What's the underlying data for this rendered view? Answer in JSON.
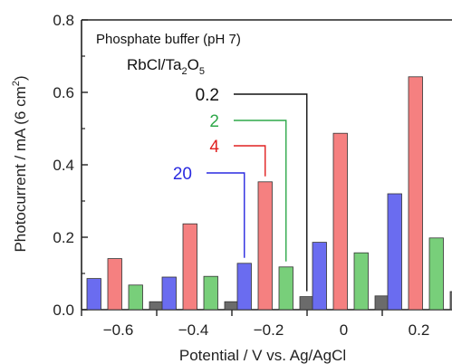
{
  "chart_data": {
    "type": "bar",
    "annotation_line1": "Phosphate buffer (pH 7)",
    "annotation_line2_main": "RbCl/Ta",
    "annotation_line2_sub1": "2",
    "annotation_line2_mid": "O",
    "annotation_line2_sub2": "5",
    "xlabel": "Potential  / V vs. Ag/AgCl",
    "ylabel": "Photocurrent / mA (6 cm²)",
    "ylabel_main": "Photocurrent / mA (6 cm",
    "ylabel_sup": "2",
    "ylabel_end": ")",
    "ylim": [
      0,
      0.8
    ],
    "yticks": [
      0.0,
      0.2,
      0.4,
      0.6,
      0.8
    ],
    "ytick_labels": [
      "0.0",
      "0.2",
      "0.4",
      "0.6",
      "0.8"
    ],
    "categories": [
      "−0.6",
      "−0.4",
      "−0.2",
      "0",
      "0.2"
    ],
    "grid": false,
    "series": [
      {
        "name": "20",
        "color": "#6a6cf0",
        "values": [
          0.086,
          0.09,
          0.128,
          0.186,
          0.32
        ]
      },
      {
        "name": "4",
        "color": "#f58080",
        "values": [
          0.141,
          0.237,
          0.353,
          0.487,
          0.643
        ]
      },
      {
        "name": "2",
        "color": "#78cf7a",
        "values": [
          0.068,
          0.092,
          0.118,
          0.157,
          0.198
        ]
      },
      {
        "name": "0.2",
        "color": "#6b6b6b",
        "values": [
          0.022,
          0.022,
          0.036,
          0.038,
          0.05
        ]
      }
    ],
    "label_colors": {
      "0.2": "#111111",
      "2": "#2fa84a",
      "4": "#e02020",
      "20": "#2a2ae0"
    }
  }
}
